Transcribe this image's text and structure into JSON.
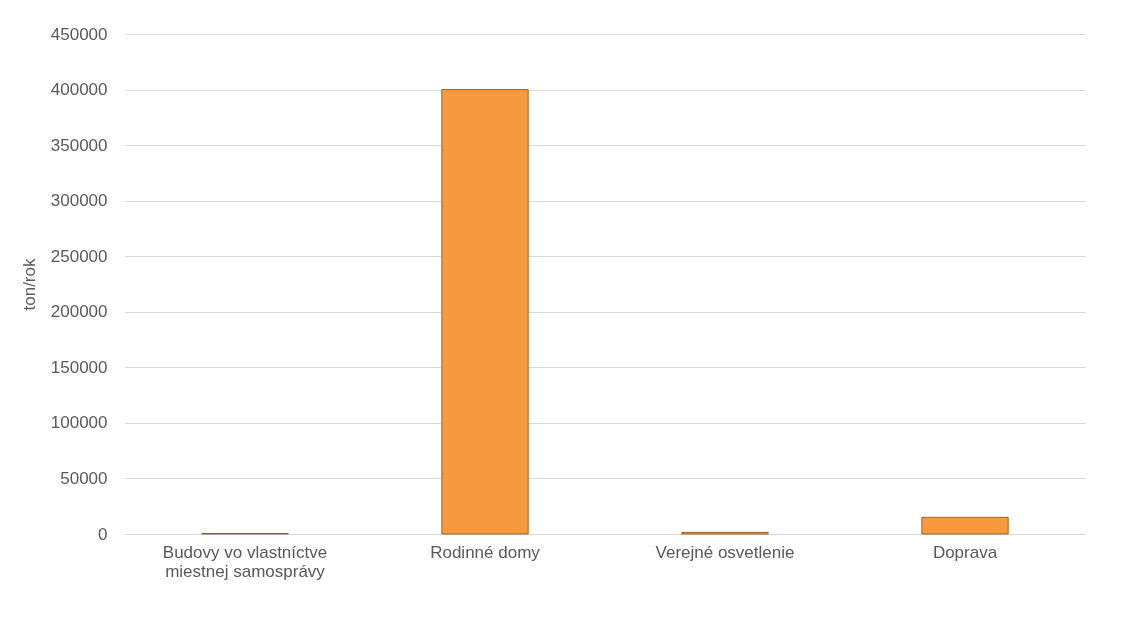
{
  "chart_data": {
    "type": "bar",
    "ylabel": "ton/rok",
    "categories": [
      "Budovy vo vlastníctve miestnej samosprávy",
      "Rodinné domy",
      "Verejné osvetlenie",
      "Doprava"
    ],
    "values": [
      500,
      400000,
      1500,
      15000
    ],
    "color": "#f79a3e",
    "ylim": [
      0,
      450000
    ],
    "yticks": [
      0,
      50000,
      100000,
      150000,
      200000,
      250000,
      300000,
      350000,
      400000,
      450000
    ],
    "grid": "y"
  }
}
